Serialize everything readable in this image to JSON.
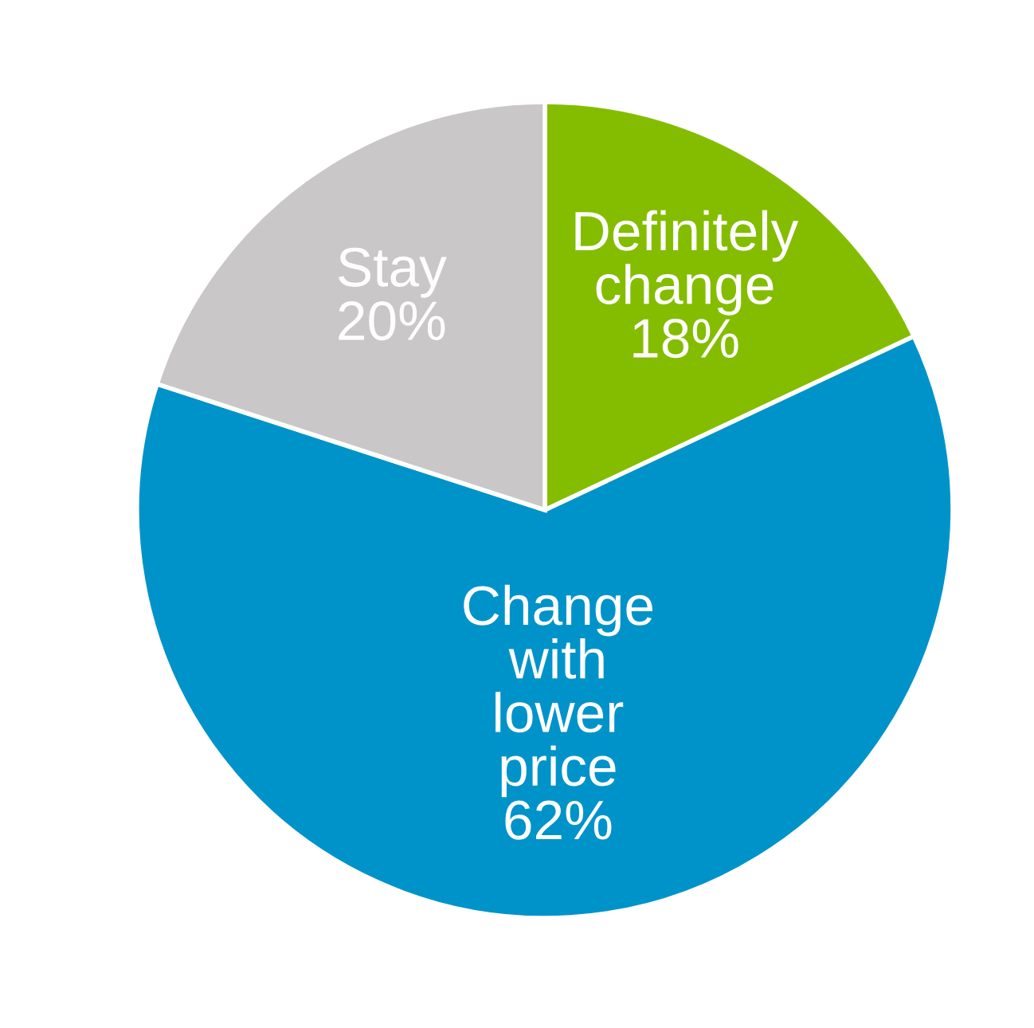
{
  "chart_data": {
    "type": "pie",
    "categories": [
      "Definitely\nchange",
      "Change\nwith\nlower\nprice",
      "Stay"
    ],
    "values": [
      18,
      62,
      20
    ],
    "colors": [
      "#84bd00",
      "#0093c9",
      "#c9c7c7"
    ],
    "value_labels": [
      "18%",
      "62%",
      "20%"
    ]
  }
}
